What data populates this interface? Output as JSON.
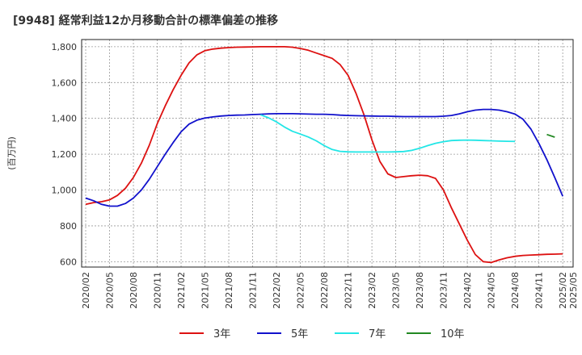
{
  "chart_data": {
    "type": "line",
    "title": "[9948]  経常利益12か月移動合計の標準偏差の推移",
    "xlabel": "",
    "ylabel": "(百万円)",
    "ylim": [
      570,
      1840
    ],
    "yticks": [
      600,
      800,
      1000,
      1200,
      1400,
      1600,
      1800
    ],
    "ytick_labels": [
      "600",
      "800",
      "1,000",
      "1,200",
      "1,400",
      "1,600",
      "1,800"
    ],
    "x_start": "2020/02",
    "x_count": 62,
    "xtick_labels": [
      "2020/02",
      "2020/05",
      "2020/08",
      "2020/11",
      "2021/02",
      "2021/05",
      "2021/08",
      "2021/11",
      "2022/02",
      "2022/05",
      "2022/08",
      "2022/11",
      "2023/02",
      "2023/05",
      "2023/08",
      "2023/11",
      "2024/02",
      "2024/05",
      "2024/08",
      "2024/11",
      "2025/02",
      "2025/05"
    ],
    "grid": true,
    "legend_position": "bottom",
    "series": [
      {
        "name": "3年",
        "color": "#dd1111",
        "start_index": 0,
        "values": [
          920,
          930,
          935,
          945,
          970,
          1010,
          1070,
          1150,
          1250,
          1370,
          1470,
          1560,
          1640,
          1710,
          1755,
          1778,
          1787,
          1792,
          1795,
          1797,
          1798,
          1799,
          1800,
          1800,
          1800,
          1800,
          1797,
          1790,
          1780,
          1765,
          1750,
          1735,
          1700,
          1640,
          1540,
          1420,
          1280,
          1160,
          1090,
          1070,
          1075,
          1080,
          1083,
          1080,
          1065,
          1000,
          900,
          810,
          720,
          640,
          600,
          595,
          610,
          622,
          630,
          635,
          637,
          639,
          641,
          642,
          644
        ]
      },
      {
        "name": "5年",
        "color": "#1111cc",
        "start_index": 0,
        "values": [
          955,
          940,
          920,
          910,
          910,
          925,
          955,
          1000,
          1060,
          1130,
          1200,
          1265,
          1325,
          1368,
          1390,
          1402,
          1408,
          1413,
          1416,
          1418,
          1419,
          1421,
          1423,
          1425,
          1426,
          1426,
          1426,
          1425,
          1424,
          1423,
          1423,
          1421,
          1418,
          1416,
          1415,
          1414,
          1413,
          1412,
          1412,
          1411,
          1410,
          1410,
          1410,
          1410,
          1410,
          1412,
          1416,
          1425,
          1437,
          1446,
          1450,
          1450,
          1446,
          1437,
          1424,
          1395,
          1340,
          1260,
          1170,
          1070,
          965
        ]
      },
      {
        "name": "7年",
        "color": "#22e6e6",
        "start_index": 22,
        "values": [
          1420,
          1403,
          1380,
          1352,
          1328,
          1312,
          1296,
          1275,
          1248,
          1226,
          1216,
          1213,
          1212,
          1212,
          1212,
          1212,
          1212,
          1213,
          1215,
          1221,
          1233,
          1248,
          1261,
          1270,
          1276,
          1278,
          1279,
          1278,
          1276,
          1275,
          1273,
          1272,
          1271
        ]
      },
      {
        "name": "10年",
        "color": "#228822",
        "start_index": 58,
        "values": [
          1310,
          1295
        ]
      }
    ]
  }
}
